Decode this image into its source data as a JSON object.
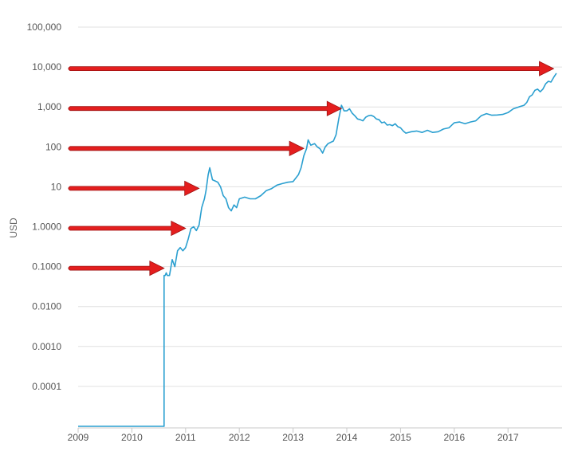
{
  "chart_data": {
    "type": "line",
    "title": "",
    "xlabel": "",
    "ylabel": "USD",
    "y_scale": "log",
    "xlim": [
      2009,
      2017.9
    ],
    "ylim": [
      1e-05,
      100000
    ],
    "grid": true,
    "line_color": "#2a9fd0",
    "annotation_color": "#e41e1e",
    "x_ticks": [
      "2009",
      "2010",
      "2011",
      "2012",
      "2013",
      "2014",
      "2015",
      "2016",
      "2017"
    ],
    "y_ticks": [
      {
        "value": 100000,
        "label": "100,000"
      },
      {
        "value": 10000,
        "label": "10,000"
      },
      {
        "value": 1000,
        "label": "1,000"
      },
      {
        "value": 100,
        "label": "100"
      },
      {
        "value": 10,
        "label": "10"
      },
      {
        "value": 1,
        "label": "1.0000"
      },
      {
        "value": 0.1,
        "label": "0.1000"
      },
      {
        "value": 0.01,
        "label": "0.0100"
      },
      {
        "value": 0.001,
        "label": "0.0010"
      },
      {
        "value": 0.0001,
        "label": "0.0001"
      }
    ],
    "series": [
      {
        "x": [
          2009.0,
          2010.6,
          2010.6,
          2010.62,
          2010.64,
          2010.66,
          2010.7,
          2010.75,
          2010.8,
          2010.85,
          2010.9,
          2010.95,
          2011.0,
          2011.05,
          2011.1,
          2011.15,
          2011.2,
          2011.25,
          2011.3,
          2011.35,
          2011.38,
          2011.42,
          2011.45,
          2011.5,
          2011.55,
          2011.6,
          2011.65,
          2011.7,
          2011.75,
          2011.8,
          2011.85,
          2011.9,
          2011.95,
          2012.0,
          2012.1,
          2012.2,
          2012.3,
          2012.4,
          2012.5,
          2012.6,
          2012.7,
          2012.8,
          2012.9,
          2013.0,
          2013.1,
          2013.15,
          2013.2,
          2013.25,
          2013.28,
          2013.33,
          2013.4,
          2013.45,
          2013.5,
          2013.55,
          2013.6,
          2013.65,
          2013.7,
          2013.75,
          2013.8,
          2013.85,
          2013.9,
          2013.95,
          2014.0,
          2014.05,
          2014.1,
          2014.15,
          2014.2,
          2014.25,
          2014.3,
          2014.35,
          2014.4,
          2014.45,
          2014.5,
          2014.55,
          2014.6,
          2014.65,
          2014.7,
          2014.75,
          2014.8,
          2014.85,
          2014.9,
          2014.95,
          2015.0,
          2015.05,
          2015.1,
          2015.2,
          2015.3,
          2015.4,
          2015.5,
          2015.6,
          2015.7,
          2015.8,
          2015.9,
          2016.0,
          2016.1,
          2016.2,
          2016.3,
          2016.4,
          2016.5,
          2016.6,
          2016.7,
          2016.8,
          2016.9,
          2017.0,
          2017.1,
          2017.2,
          2017.3,
          2017.35,
          2017.4,
          2017.45,
          2017.5,
          2017.55,
          2017.6,
          2017.65,
          2017.7,
          2017.75,
          2017.8,
          2017.85,
          2017.9
        ],
        "values": [
          1e-05,
          1e-05,
          0.06,
          0.06,
          0.07,
          0.06,
          0.06,
          0.15,
          0.1,
          0.25,
          0.3,
          0.25,
          0.3,
          0.5,
          0.9,
          1.0,
          0.8,
          1.1,
          3.0,
          5.0,
          8.0,
          20.0,
          30.0,
          15.0,
          14.0,
          13.0,
          10.0,
          6.0,
          5.0,
          3.0,
          2.5,
          3.5,
          3.0,
          5.0,
          5.5,
          5.0,
          5.0,
          6.0,
          8.0,
          9.0,
          11.0,
          12.0,
          13.0,
          13.5,
          20.0,
          30.0,
          60.0,
          90.0,
          150.0,
          110.0,
          120.0,
          100.0,
          90.0,
          70.0,
          100.0,
          120.0,
          130.0,
          140.0,
          200.0,
          500.0,
          1100.0,
          800.0,
          800.0,
          900.0,
          700.0,
          600.0,
          500.0,
          480.0,
          450.0,
          550.0,
          600.0,
          620.0,
          580.0,
          500.0,
          480.0,
          400.0,
          420.0,
          350.0,
          360.0,
          340.0,
          380.0,
          320.0,
          300.0,
          250.0,
          220.0,
          240.0,
          250.0,
          230.0,
          260.0,
          230.0,
          240.0,
          280.0,
          300.0,
          400.0,
          420.0,
          380.0,
          420.0,
          450.0,
          600.0,
          680.0,
          620.0,
          630.0,
          650.0,
          720.0,
          900.0,
          1000.0,
          1100.0,
          1300.0,
          1800.0,
          2000.0,
          2600.0,
          2800.0,
          2400.0,
          2800.0,
          3800.0,
          4400.0,
          4200.0,
          5500.0,
          7000.0
        ]
      }
    ],
    "annotations": [
      {
        "type": "arrow",
        "from": {
          "x": 2008.85,
          "y": 10000
        },
        "to": {
          "x": 2017.85,
          "y": 10000
        }
      },
      {
        "type": "arrow",
        "from": {
          "x": 2008.85,
          "y": 1000
        },
        "to": {
          "x": 2013.9,
          "y": 1000
        }
      },
      {
        "type": "arrow",
        "from": {
          "x": 2008.85,
          "y": 100
        },
        "to": {
          "x": 2013.2,
          "y": 100
        }
      },
      {
        "type": "arrow",
        "from": {
          "x": 2008.85,
          "y": 10
        },
        "to": {
          "x": 2011.25,
          "y": 10
        }
      },
      {
        "type": "arrow",
        "from": {
          "x": 2008.85,
          "y": 1
        },
        "to": {
          "x": 2011.0,
          "y": 1
        }
      },
      {
        "type": "arrow",
        "from": {
          "x": 2008.85,
          "y": 0.1
        },
        "to": {
          "x": 2010.6,
          "y": 0.1
        }
      }
    ]
  }
}
